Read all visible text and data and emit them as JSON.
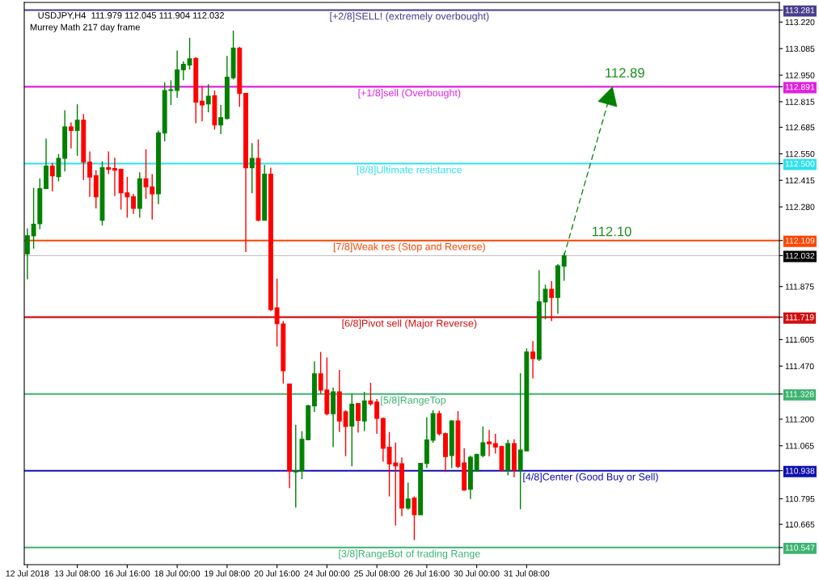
{
  "chart_data": {
    "type": "candlestick",
    "title": "USDJPY,H4  111.979 112.045 111.904 112.032",
    "subtitle": "Murrey Math 217 day frame",
    "categories": [
      "12 Jul 2018",
      null,
      null,
      null,
      null,
      null,
      null,
      null,
      "13 Jul 08:00",
      null,
      null,
      null,
      null,
      null,
      null,
      null,
      "16 Jul 16:00",
      null,
      null,
      null,
      null,
      null,
      null,
      null,
      "18 Jul 00:00",
      null,
      null,
      null,
      null,
      null,
      null,
      null,
      "19 Jul 08:00",
      null,
      null,
      null,
      null,
      null,
      null,
      null,
      "20 Jul 16:00",
      null,
      null,
      null,
      null,
      null,
      null,
      null,
      "24 Jul 00:00",
      null,
      null,
      null,
      null,
      null,
      null,
      null,
      "25 Jul 08:00",
      null,
      null,
      null,
      null,
      null,
      null,
      null,
      "26 Jul 16:00",
      null,
      null,
      null,
      null,
      null,
      null,
      null,
      "30 Jul 00:00",
      null,
      null,
      null,
      null,
      null,
      null,
      null,
      "31 Jul 08:00",
      null,
      null,
      null,
      null,
      null,
      null,
      null,
      null,
      null,
      null,
      null,
      null,
      null,
      null,
      null,
      null,
      null,
      null,
      null,
      null,
      null,
      null,
      null,
      null,
      null,
      null,
      null,
      null,
      null,
      null,
      null,
      null,
      null,
      null,
      null,
      null,
      null,
      null,
      null,
      null
    ],
    "ohlc": [
      [
        112.041,
        112.17,
        111.912,
        112.133
      ],
      [
        112.133,
        112.377,
        112.068,
        112.192
      ],
      [
        112.194,
        112.425,
        112.166,
        112.373
      ],
      [
        112.373,
        112.628,
        112.37,
        112.488
      ],
      [
        112.488,
        112.503,
        112.359,
        112.438
      ],
      [
        112.434,
        112.549,
        112.41,
        112.527
      ],
      [
        112.527,
        112.771,
        112.46,
        112.687
      ],
      [
        112.687,
        112.71,
        112.577,
        112.669
      ],
      [
        112.669,
        112.802,
        112.54,
        112.721
      ],
      [
        112.721,
        112.752,
        112.416,
        112.508
      ],
      [
        112.508,
        112.562,
        112.331,
        112.432
      ],
      [
        112.438,
        112.466,
        112.272,
        112.331
      ],
      [
        112.212,
        112.512,
        112.185,
        112.479
      ],
      [
        112.479,
        112.562,
        112.447,
        112.471
      ],
      [
        112.475,
        112.53,
        112.336,
        112.467
      ],
      [
        112.471,
        112.475,
        112.266,
        112.351
      ],
      [
        112.351,
        112.432,
        112.225,
        112.331
      ],
      [
        112.331,
        112.346,
        112.244,
        112.272
      ],
      [
        112.272,
        112.456,
        112.225,
        112.423
      ],
      [
        112.423,
        112.573,
        112.321,
        112.382
      ],
      [
        112.382,
        112.447,
        112.216,
        112.346
      ],
      [
        112.346,
        112.669,
        112.294,
        112.656
      ],
      [
        112.656,
        112.913,
        112.613,
        112.872
      ],
      [
        112.872,
        112.924,
        112.798,
        112.876
      ],
      [
        112.872,
        113.075,
        112.835,
        112.977
      ],
      [
        112.977,
        113.02,
        112.924,
        113.005
      ],
      [
        113.002,
        113.14,
        112.979,
        113.033
      ],
      [
        113.035,
        113.042,
        112.706,
        112.813
      ],
      [
        112.817,
        112.894,
        112.715,
        112.798
      ],
      [
        112.804,
        112.904,
        112.761,
        112.843
      ],
      [
        112.845,
        112.872,
        112.673,
        112.697
      ],
      [
        112.697,
        112.798,
        112.65,
        112.734
      ],
      [
        112.73,
        113.048,
        112.724,
        112.94
      ],
      [
        112.937,
        113.177,
        112.928,
        113.088
      ],
      [
        113.088,
        113.094,
        112.789,
        112.857
      ],
      [
        112.857,
        112.857,
        112.05,
        112.479
      ],
      [
        112.479,
        112.604,
        112.349,
        112.527
      ],
      [
        112.527,
        112.623,
        112.207,
        112.212
      ],
      [
        112.212,
        112.493,
        112.212,
        112.447
      ],
      [
        112.447,
        112.48,
        111.749,
        111.758
      ],
      [
        111.767,
        111.915,
        111.57,
        111.686
      ],
      [
        111.684,
        111.699,
        111.381,
        111.446
      ],
      [
        111.379,
        111.379,
        110.849,
        110.936
      ],
      [
        110.932,
        111.172,
        110.751,
        110.938
      ],
      [
        110.936,
        111.139,
        110.895,
        111.098
      ],
      [
        111.095,
        111.274,
        111.095,
        111.268
      ],
      [
        111.268,
        111.495,
        111.237,
        111.431
      ],
      [
        111.431,
        111.542,
        111.329,
        111.348
      ],
      [
        111.348,
        111.514,
        111.219,
        111.228
      ],
      [
        111.228,
        111.361,
        111.058,
        111.339
      ],
      [
        111.339,
        111.45,
        111.135,
        111.191
      ],
      [
        111.237,
        111.246,
        111.012,
        111.163
      ],
      [
        111.165,
        111.329,
        110.96,
        111.276
      ],
      [
        111.28,
        111.28,
        111.132,
        111.194
      ],
      [
        111.191,
        111.339,
        111.139,
        111.293
      ],
      [
        111.293,
        111.385,
        111.269,
        111.278
      ],
      [
        111.287,
        111.302,
        111.126,
        111.204
      ],
      [
        111.204,
        111.209,
        110.984,
        111.052
      ],
      [
        111.058,
        111.135,
        110.807,
        110.973
      ],
      [
        110.978,
        111.08,
        110.659,
        110.963
      ],
      [
        110.973,
        111.006,
        110.707,
        110.748
      ],
      [
        110.748,
        110.877,
        110.739,
        110.794
      ],
      [
        110.799,
        110.807,
        110.585,
        110.714
      ],
      [
        110.714,
        110.978,
        110.714,
        110.975
      ],
      [
        110.975,
        111.209,
        110.951,
        111.095
      ],
      [
        111.093,
        111.246,
        111.08,
        111.228
      ],
      [
        111.228,
        111.243,
        111.117,
        111.126
      ],
      [
        111.126,
        111.132,
        110.932,
        111.01
      ],
      [
        111.015,
        111.195,
        110.951,
        111.191
      ],
      [
        111.191,
        111.241,
        110.951,
        110.96
      ],
      [
        110.978,
        111.052,
        110.836,
        110.839
      ],
      [
        110.843,
        111.015,
        110.794,
        111.006
      ],
      [
        110.936,
        111.025,
        110.932,
        111.021
      ],
      [
        111.015,
        111.163,
        111.006,
        111.08
      ],
      [
        111.084,
        111.145,
        111.012,
        111.075
      ],
      [
        111.076,
        111.126,
        111.025,
        111.058
      ],
      [
        111.061,
        111.065,
        110.932,
        110.941
      ],
      [
        110.938,
        111.095,
        110.914,
        111.076
      ],
      [
        111.076,
        111.098,
        110.905,
        110.941
      ],
      [
        110.941,
        111.434,
        110.742,
        111.043
      ],
      [
        111.039,
        111.56,
        111.039,
        111.542
      ],
      [
        111.542,
        111.597,
        111.407,
        111.508
      ],
      [
        111.505,
        111.958,
        111.496,
        111.797
      ],
      [
        111.797,
        111.884,
        111.708,
        111.861
      ],
      [
        111.861,
        111.902,
        111.699,
        111.819
      ],
      [
        111.819,
        111.989,
        111.736,
        111.98
      ],
      [
        111.979,
        112.045,
        111.904,
        112.032
      ],
      null,
      null,
      null,
      null,
      null,
      null,
      null,
      null,
      null,
      null,
      null,
      null,
      null,
      null,
      null,
      null,
      null,
      null,
      null,
      null,
      null,
      null,
      null,
      null,
      null,
      null,
      null,
      null,
      null,
      null,
      null,
      null,
      null,
      null
    ],
    "colors": [
      "#008000",
      "#008000",
      "#008000",
      "#008000",
      "#ff0000",
      "#008000",
      "#008000",
      "#ff0000",
      "#008000",
      "#ff0000",
      "#ff0000",
      "#ff0000",
      "#008000",
      "#ff0000",
      "#ff0000",
      "#ff0000",
      "#ff0000",
      "#ff0000",
      "#008000",
      "#ff0000",
      "#ff0000",
      "#008000",
      "#008000",
      "#008000",
      "#008000",
      "#008000",
      "#008000",
      "#ff0000",
      "#ff0000",
      "#008000",
      "#ff0000",
      "#008000",
      "#008000",
      "#008000",
      "#ff0000",
      "#ff0000",
      "#008000",
      "#ff0000",
      "#008000",
      "#ff0000",
      "#ff0000",
      "#ff0000",
      "#ff0000",
      "#008000",
      "#008000",
      "#008000",
      "#008000",
      "#ff0000",
      "#ff0000",
      "#008000",
      "#ff0000",
      "#ff0000",
      "#008000",
      "#ff0000",
      "#008000",
      "#ff0000",
      "#ff0000",
      "#ff0000",
      "#ff0000",
      "#ff0000",
      "#ff0000",
      "#008000",
      "#ff0000",
      "#008000",
      "#008000",
      "#008000",
      "#ff0000",
      "#ff0000",
      "#008000",
      "#ff0000",
      "#ff0000",
      "#008000",
      "#008000",
      "#008000",
      "#ff0000",
      "#ff0000",
      "#ff0000",
      "#008000",
      "#ff0000",
      "#008000",
      "#008000",
      "#ff0000",
      "#008000",
      "#008000",
      "#ff0000",
      "#008000",
      "#008000",
      null,
      null,
      null,
      null,
      null,
      null,
      null,
      null,
      null,
      null,
      null,
      null,
      null,
      null,
      null,
      null,
      null,
      null,
      null,
      null,
      null,
      null,
      null,
      null,
      null,
      null,
      null,
      null,
      null,
      null,
      null,
      null,
      null,
      null
    ],
    "ylim": [
      110.46,
      113.32
    ],
    "yticks": [
      113.281,
      {
        "value": 113.22,
        "label": "113.220"
      },
      113.085,
      {
        "value": 112.95,
        "label": "112.950"
      },
      112.891,
      112.815,
      112.685,
      {
        "value": 112.55,
        "label": "112.550"
      },
      {
        "value": 112.5,
        "label": "112.500"
      },
      112.415,
      {
        "value": 112.28,
        "label": "112.280"
      },
      112.109,
      112.032,
      111.875,
      111.719,
      111.605,
      {
        "value": 111.47,
        "label": "111.470"
      },
      111.328,
      {
        "value": 111.2,
        "label": "111.200"
      },
      111.065,
      110.938,
      110.795,
      110.665,
      110.547
    ],
    "ref_lines": [
      {
        "axis": "y",
        "value": 113.281,
        "label": "[+2/8]SELL! (extremely overbought)",
        "color": "#483d8b"
      },
      {
        "axis": "y",
        "value": 112.891,
        "label": "[+1/8]sell (Overbought)",
        "color": "#e020e0"
      },
      {
        "axis": "y",
        "value": 112.5,
        "label": "[8/8]Ultimate resistance",
        "color": "#30e0ec"
      },
      {
        "axis": "y",
        "value": 112.109,
        "label": "[7/8]Weak res (Stop and Reverse)",
        "color": "#ff4500"
      },
      {
        "axis": "y",
        "value": 112.032,
        "color": "#c0c0c0"
      },
      {
        "axis": "y",
        "value": 111.719,
        "label": "[6/8]Pivot sell (Major Reverse)",
        "color": "#d01010"
      },
      {
        "axis": "y",
        "value": 111.328,
        "label": "[5/8]RangeTop",
        "color": "#3cb371"
      },
      {
        "axis": "y",
        "value": 110.938,
        "label": "[4/8]Center (Good Buy or Sell)",
        "color": "#1010b0"
      },
      {
        "axis": "y",
        "value": 110.547,
        "label": "[3/8]RangeBot of trading Range",
        "color": "#3cb371"
      }
    ],
    "annotations": [
      {
        "text": "112.89",
        "y": 112.89
      },
      {
        "text": "112.10",
        "y": 112.1
      }
    ]
  }
}
